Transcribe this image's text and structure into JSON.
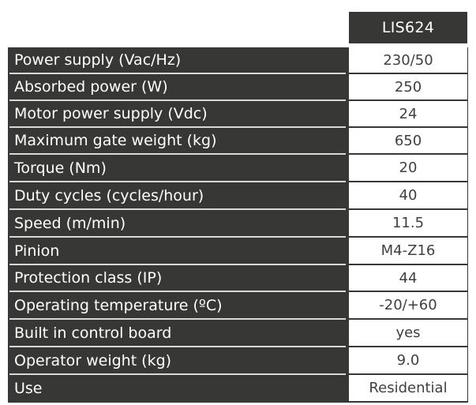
{
  "table": {
    "header": "LIS624",
    "rows": [
      {
        "label": "Power supply (Vac/Hz)",
        "value": "230/50"
      },
      {
        "label": "Absorbed power  (W)",
        "value": "250"
      },
      {
        "label": "Motor power supply (Vdc)",
        "value": "24"
      },
      {
        "label": "Maximum gate weight (kg)",
        "value": "650"
      },
      {
        "label": "Torque (Nm)",
        "value": "20"
      },
      {
        "label": "Duty cycles (cycles/hour)",
        "value": "40"
      },
      {
        "label": "Speed (m/min)",
        "value": "11.5"
      },
      {
        "label": "Pinion",
        "value": "M4-Z16"
      },
      {
        "label": "Protection class (IP)",
        "value": "44"
      },
      {
        "label": "Operating temperature (ºC)",
        "value": "-20/+60"
      },
      {
        "label": "Built in control board",
        "value": "yes"
      },
      {
        "label": "Operator weight (kg)",
        "value": "9.0"
      },
      {
        "label": "Use",
        "value": "Residential"
      }
    ]
  }
}
